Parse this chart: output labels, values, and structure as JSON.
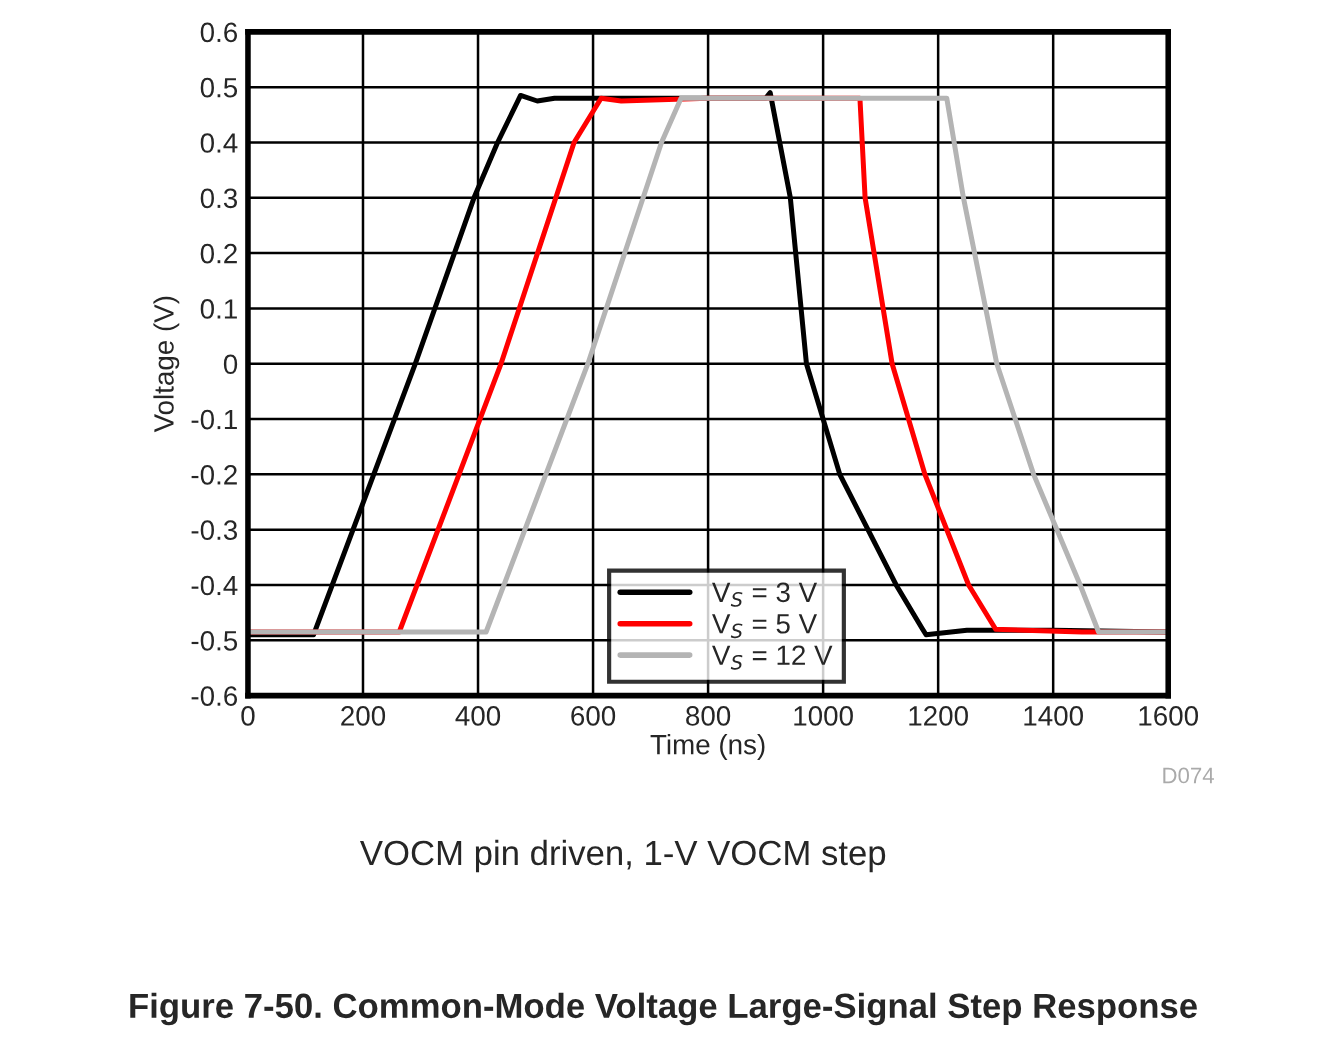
{
  "chart_data": {
    "type": "line",
    "title": "Figure 7-50. Common-Mode Voltage Large-Signal Step Response",
    "subtitle": "VOCM pin driven, 1-V VOCM step",
    "xlabel": "Time (ns)",
    "ylabel": "Voltage (V)",
    "annotations": [
      "D074"
    ],
    "series": [
      {
        "name": "V$_{S}$ = 3 V",
        "color": "#000000",
        "x": [
          0,
          114,
          291,
          393,
          434,
          474,
          503,
          533,
          700,
          900,
          908,
          943,
          971,
          1029,
          1127,
          1173,
          1179,
          1250,
          1400,
          1600
        ],
        "values": [
          -0.49,
          -0.49,
          0.0,
          0.3,
          0.4,
          0.485,
          0.475,
          0.48,
          0.48,
          0.48,
          0.49,
          0.3,
          0.0,
          -0.2,
          -0.4,
          -0.48,
          -0.49,
          -0.482,
          -0.482,
          -0.485
        ]
      },
      {
        "name": "V$_{S}$ = 5 V",
        "color": "#ff0000",
        "x": [
          0,
          263,
          440,
          567,
          614,
          649,
          800,
          1064,
          1073,
          1120,
          1177,
          1253,
          1300,
          1450,
          1600
        ],
        "values": [
          -0.485,
          -0.485,
          0.0,
          0.4,
          0.48,
          0.475,
          0.48,
          0.48,
          0.3,
          0.0,
          -0.2,
          -0.4,
          -0.48,
          -0.485,
          -0.485
        ]
      },
      {
        "name": "V$_{S}$ = 12 V",
        "color": "#b4b4b4",
        "x": [
          0,
          414,
          591,
          719,
          753,
          1000,
          1215,
          1244,
          1302,
          1366,
          1447,
          1479,
          1600
        ],
        "values": [
          -0.485,
          -0.485,
          0.0,
          0.4,
          0.48,
          0.48,
          0.48,
          0.3,
          0.0,
          -0.2,
          -0.4,
          -0.485,
          -0.485
        ]
      }
    ],
    "xlim": [
      0,
      1600
    ],
    "xticks": [
      0,
      200,
      400,
      600,
      800,
      1000,
      1200,
      1400,
      1600
    ],
    "ylim": [
      -0.6,
      0.6
    ],
    "yticks": [
      -0.6,
      -0.5,
      -0.4,
      -0.3,
      -0.2,
      -0.1,
      0,
      0.1,
      0.2,
      0.3,
      0.4,
      0.5,
      0.6
    ],
    "grid": true,
    "legend": "bottom",
    "line_style": "solid",
    "marker": "none"
  }
}
